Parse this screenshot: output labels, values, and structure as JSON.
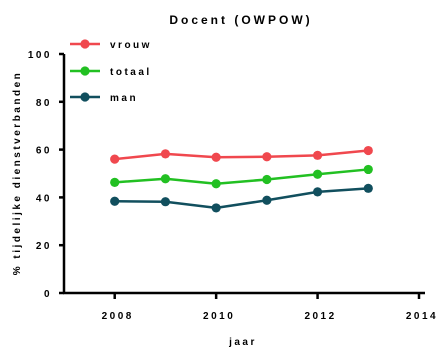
{
  "chart_data": {
    "type": "line",
    "title": "Docent (OWPOW)",
    "xlabel": "jaar",
    "ylabel": "% tijdelijke dienstverbanden",
    "xlim": [
      2007,
      2014
    ],
    "ylim": [
      0,
      100
    ],
    "x_ticks": [
      2008,
      2010,
      2012,
      2014
    ],
    "y_ticks": [
      0,
      20,
      40,
      60,
      80,
      100
    ],
    "x": [
      2008,
      2009,
      2010,
      2011,
      2012,
      2013
    ],
    "legend_position": "top-left",
    "series": [
      {
        "name": "vrouw",
        "color": "#f0484e",
        "values": [
          56,
          58.2,
          56.8,
          57,
          57.6,
          59.6
        ]
      },
      {
        "name": "totaal",
        "color": "#22c022",
        "values": [
          46.3,
          47.8,
          45.7,
          47.5,
          49.7,
          51.7
        ]
      },
      {
        "name": "man",
        "color": "#114f5e",
        "values": [
          38.4,
          38.2,
          35.6,
          38.8,
          42.3,
          43.8
        ]
      }
    ]
  }
}
